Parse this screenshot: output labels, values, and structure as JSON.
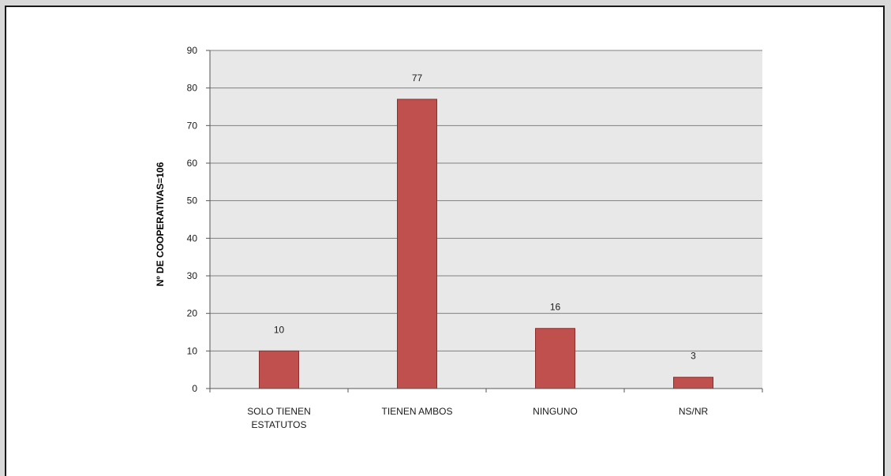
{
  "chart_data": {
    "type": "bar",
    "title": "",
    "xlabel": "",
    "ylabel": "Nº DE COOPERATIVAS=106",
    "categories": [
      [
        "SOLO TIENEN",
        "ESTATUTOS"
      ],
      [
        "TIENEN AMBOS"
      ],
      [
        "NINGUNO"
      ],
      [
        "NS/NR"
      ]
    ],
    "values": [
      10,
      77,
      16,
      3
    ],
    "data_labels": [
      "10",
      "77",
      "16",
      "3"
    ],
    "ylim": [
      0,
      90
    ],
    "yticks": [
      0,
      10,
      20,
      30,
      40,
      50,
      60,
      70,
      80,
      90
    ],
    "grid": true,
    "legend": "none",
    "colors": {
      "bar": "#c0504d",
      "bar_edge": "#8c2f2c",
      "plot_background": "#e8e8e8",
      "gridline": "#7f7f7f"
    }
  }
}
